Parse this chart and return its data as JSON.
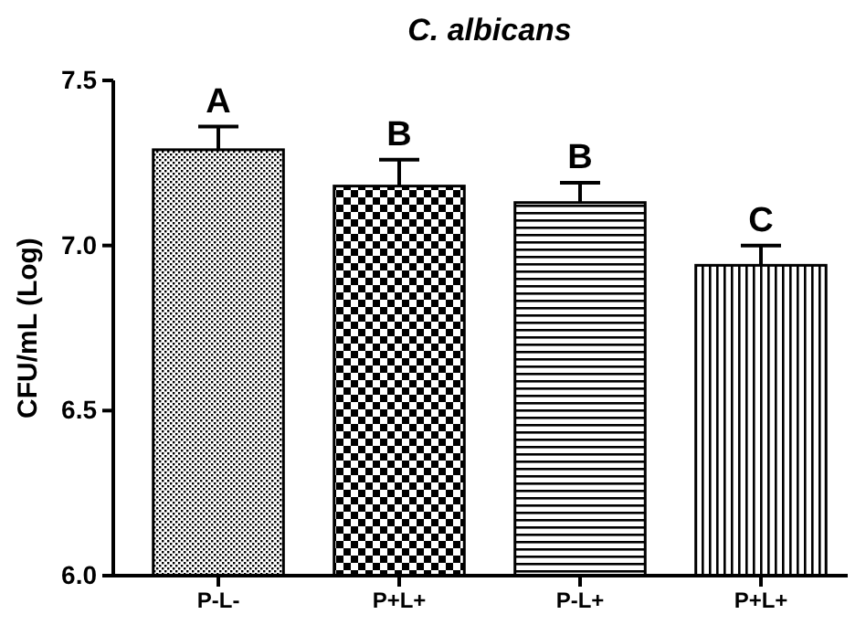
{
  "chart_data": {
    "type": "bar",
    "title": "C. albicans",
    "ylabel": "CFU/mL (Log)",
    "categories": [
      "P-L-",
      "P+L+",
      "P-L+",
      "P+L+"
    ],
    "values": [
      7.29,
      7.18,
      7.13,
      6.94
    ],
    "errors": [
      0.07,
      0.08,
      0.06,
      0.06
    ],
    "colors": [
      "#000000",
      "#000000",
      "#000000",
      "#000000"
    ],
    "annotations": [
      "A",
      "B",
      "B",
      "C"
    ],
    "ylim": [
      6.0,
      7.5
    ],
    "yticks": [
      {
        "value": 6.0,
        "label": "6.0"
      },
      {
        "value": 6.5,
        "label": "6.5"
      },
      {
        "value": 7.0,
        "label": "7.0"
      },
      {
        "value": 7.5,
        "label": "7.5"
      }
    ],
    "grid": false
  }
}
